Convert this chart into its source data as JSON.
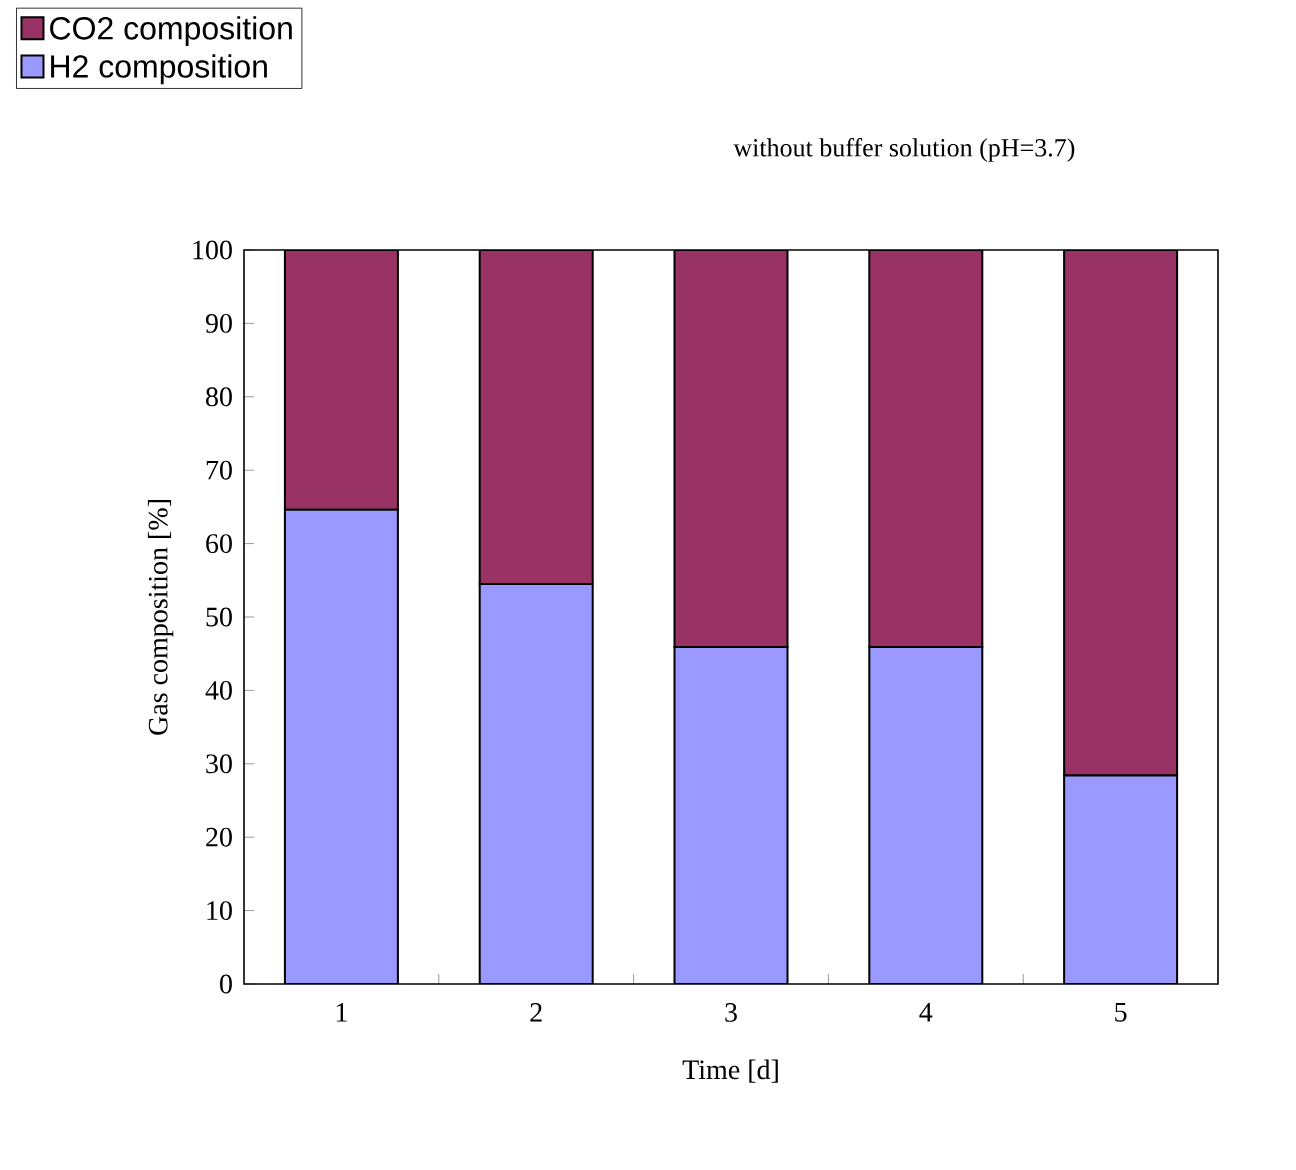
{
  "chart_data": {
    "type": "bar",
    "stacked": true,
    "title": "without buffer solution (pH=3.7)",
    "xlabel": "Time [d]",
    "ylabel": "Gas composition [%]",
    "categories": [
      "1",
      "2",
      "3",
      "4",
      "5"
    ],
    "series": [
      {
        "name": "H2 composition",
        "color": "#9999ff",
        "values": [
          64.6,
          54.5,
          45.9,
          45.9,
          28.4
        ]
      },
      {
        "name": "CO2 composition",
        "color": "#993366",
        "values": [
          35.4,
          45.5,
          54.1,
          54.1,
          71.6
        ]
      }
    ],
    "ylim": [
      0,
      100
    ],
    "yticks": [
      0,
      10,
      20,
      30,
      40,
      50,
      60,
      70,
      80,
      90,
      100
    ],
    "legend": "top left"
  }
}
